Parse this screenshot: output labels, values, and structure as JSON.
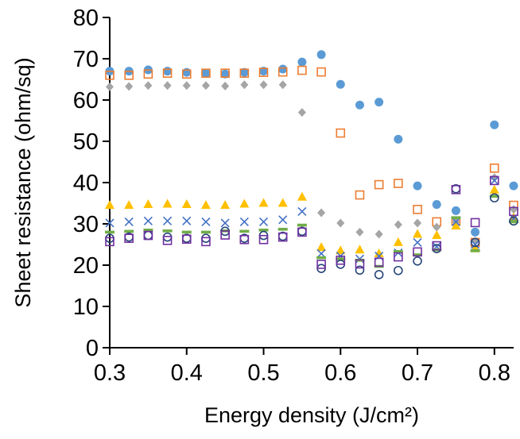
{
  "chart_data": {
    "type": "scatter",
    "title": "",
    "xlabel": "Energy density (J/cm²)",
    "ylabel": "Sheet resistance (ohm/sq)",
    "xlim": [
      0.3,
      0.825
    ],
    "ylim": [
      0,
      80
    ],
    "grid": false,
    "x_ticks": [
      "0.3",
      "0.4",
      "0.5",
      "0.6",
      "0.7",
      "0.8"
    ],
    "y_ticks": [
      "0",
      "10",
      "20",
      "30",
      "40",
      "50",
      "60",
      "70",
      "80"
    ],
    "x": [
      0.3,
      0.325,
      0.35,
      0.375,
      0.4,
      0.425,
      0.45,
      0.475,
      0.5,
      0.525,
      0.55,
      0.575,
      0.6,
      0.625,
      0.65,
      0.675,
      0.7,
      0.725,
      0.75,
      0.775,
      0.8,
      0.825
    ],
    "series": [
      {
        "marker": "circle-filled",
        "color": "#5b9bd5",
        "values": [
          67,
          67,
          67.3,
          67,
          66.7,
          66.5,
          66.3,
          66.7,
          67,
          67.5,
          69.2,
          71,
          63.8,
          58.8,
          59.5,
          50.5,
          39.2,
          34.7,
          33.2,
          28,
          54,
          39.2
        ]
      },
      {
        "marker": "square-open",
        "color": "#ed7d31",
        "values": [
          66,
          66,
          66.3,
          66.5,
          66.3,
          66.5,
          66.5,
          66.5,
          66.7,
          66.8,
          67.2,
          66.8,
          52,
          37,
          39.5,
          39.8,
          33.5,
          30.5,
          30.7,
          25.5,
          43.5,
          34.5
        ]
      },
      {
        "marker": "diamond-filled",
        "color": "#a5a5a5",
        "values": [
          63.2,
          63.3,
          63.5,
          63.5,
          63.5,
          63.5,
          63.4,
          63.7,
          63.7,
          63.7,
          57,
          32.7,
          30.2,
          28,
          27.5,
          29.8,
          30.2,
          29.2,
          30.5,
          25.8,
          41.2,
          33.5
        ]
      },
      {
        "marker": "triangle-filled",
        "color": "#ffc000",
        "values": [
          34.5,
          34.5,
          34.7,
          34.8,
          34.7,
          34.5,
          34.5,
          34.8,
          35,
          35,
          36.5,
          24.3,
          23.5,
          23.7,
          22.8,
          25.5,
          27.5,
          27.2,
          29.5,
          24,
          38.2,
          31.5
        ]
      },
      {
        "marker": "cross",
        "color": "#4472c4",
        "values": [
          30.2,
          30.5,
          30.7,
          30.7,
          30.7,
          30.5,
          30.2,
          30.5,
          30.5,
          31,
          33,
          22.8,
          22.2,
          21.5,
          22.2,
          23,
          25.5,
          24.5,
          30.5,
          25,
          40.5,
          31.3
        ]
      },
      {
        "marker": "dash",
        "color": "#70ad47",
        "values": [
          28,
          28.2,
          28.5,
          28.3,
          28,
          28,
          28.3,
          28.2,
          28.5,
          28.7,
          29.7,
          21.8,
          21.5,
          21.2,
          19.7,
          23.3,
          22.5,
          23.7,
          31.5,
          23.5,
          36.7,
          30.5
        ]
      },
      {
        "marker": "circle-open",
        "color": "#264478",
        "values": [
          26.5,
          26.8,
          27.2,
          26.8,
          26.5,
          26.5,
          28.2,
          26.5,
          27.2,
          27,
          28.2,
          19.2,
          20.2,
          18.8,
          17.7,
          18.7,
          21,
          24,
          38.5,
          25.5,
          36.3,
          30.7
        ]
      },
      {
        "marker": "square-open",
        "color": "#7030a0",
        "values": [
          25.7,
          26.5,
          27.2,
          26,
          26.3,
          25.7,
          27.3,
          26.2,
          26.2,
          26.8,
          28,
          20.2,
          21.2,
          20.3,
          20.7,
          22,
          23.2,
          24.7,
          38.3,
          30.3,
          40.5,
          33
        ]
      }
    ]
  }
}
